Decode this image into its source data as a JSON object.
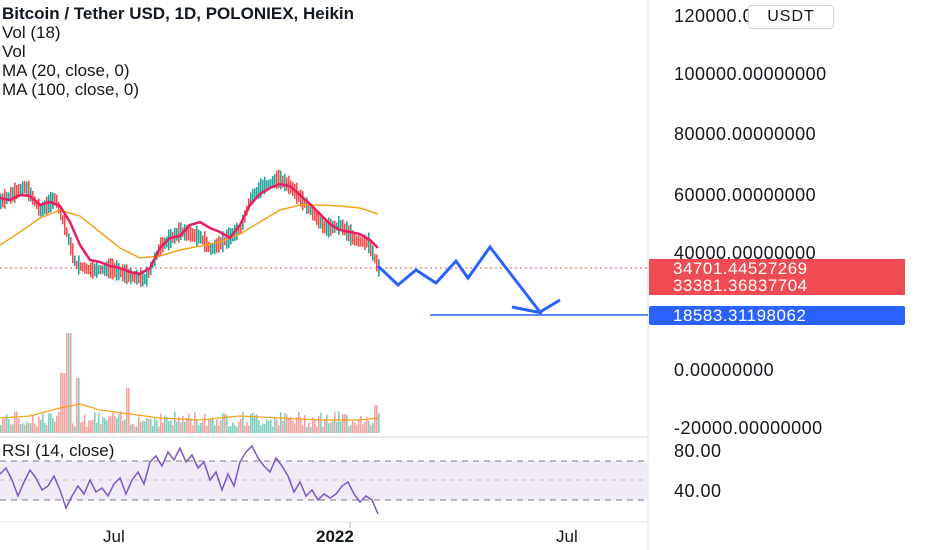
{
  "chart_data": {
    "type": "candlestick",
    "title": "Bitcoin / Tether USD, 1D, POLONIEX, Heikin",
    "indicators": [
      "Vol (18)",
      "Vol",
      "MA (20, close, 0)",
      "MA (100, close, 0)"
    ],
    "currency": "USDT",
    "y_ticks": [
      "120000.00000000",
      "100000.00000000",
      "80000.00000000",
      "60000.00000000",
      "40000.00000000",
      "0.00000000",
      "-20000.00000000"
    ],
    "price_labels": {
      "last": "34701.44527269",
      "ma": "33381.36837704",
      "target": "18583.31198062"
    },
    "x_ticks": [
      "Jul",
      "2022",
      "Jul"
    ],
    "rsi": {
      "label": "RSI (14, close)",
      "ticks": [
        "80.00",
        "40.00"
      ]
    },
    "price_series": [
      {
        "t": "2021-04",
        "price": 56000
      },
      {
        "t": "2021-05",
        "price": 50000
      },
      {
        "t": "2021-06",
        "price": 34000
      },
      {
        "t": "2021-07",
        "price": 32000
      },
      {
        "t": "2021-08",
        "price": 46000
      },
      {
        "t": "2021-09",
        "price": 44000
      },
      {
        "t": "2021-10",
        "price": 60000
      },
      {
        "t": "2021-11",
        "price": 64000
      },
      {
        "t": "2021-12",
        "price": 48000
      },
      {
        "t": "2022-01",
        "price": 34700
      }
    ],
    "projection": [
      {
        "t": "2022-01",
        "price": 34700
      },
      {
        "t": "2022-02",
        "price": 31000
      },
      {
        "t": "2022-03",
        "price": 35500
      },
      {
        "t": "2022-04",
        "price": 30500
      },
      {
        "t": "2022-05",
        "price": 36500
      },
      {
        "t": "2022-06",
        "price": 31000
      },
      {
        "t": "2022-07",
        "price": 40000
      },
      {
        "t": "2022-08",
        "price": 25000
      },
      {
        "t": "2022-09",
        "price": 19000
      },
      {
        "t": "2022-10",
        "price": 23000
      }
    ],
    "horizontal_line": 18583.31,
    "colors": {
      "up": "#26a69a",
      "down": "#ef5350",
      "ma20": "#e91e63",
      "ma100": "#f7a21b",
      "projection": "#2962ff",
      "rsi": "#7e57c2",
      "last_price": "#f04a52"
    }
  }
}
